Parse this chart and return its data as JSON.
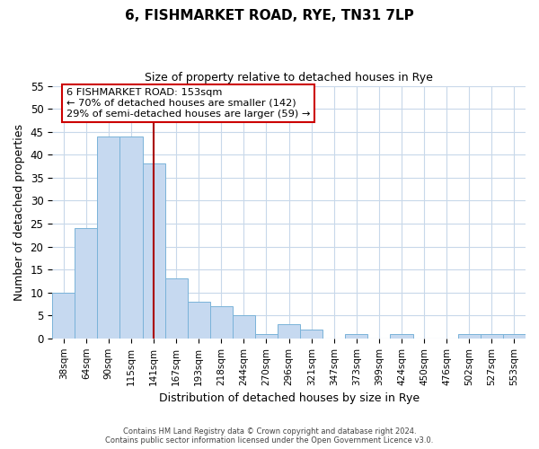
{
  "title": "6, FISHMARKET ROAD, RYE, TN31 7LP",
  "subtitle": "Size of property relative to detached houses in Rye",
  "xlabel": "Distribution of detached houses by size in Rye",
  "ylabel": "Number of detached properties",
  "bin_labels": [
    "38sqm",
    "64sqm",
    "90sqm",
    "115sqm",
    "141sqm",
    "167sqm",
    "193sqm",
    "218sqm",
    "244sqm",
    "270sqm",
    "296sqm",
    "321sqm",
    "347sqm",
    "373sqm",
    "399sqm",
    "424sqm",
    "450sqm",
    "476sqm",
    "502sqm",
    "527sqm",
    "553sqm"
  ],
  "bar_heights": [
    10,
    24,
    44,
    44,
    38,
    13,
    8,
    7,
    5,
    1,
    3,
    2,
    0,
    1,
    0,
    1,
    0,
    0,
    1,
    1,
    1
  ],
  "bar_color": "#c6d9f0",
  "bar_edge_color": "#7ab3d9",
  "vline_x_index": 4.5,
  "vline_color": "#aa0000",
  "ylim": [
    0,
    55
  ],
  "yticks": [
    0,
    5,
    10,
    15,
    20,
    25,
    30,
    35,
    40,
    45,
    50,
    55
  ],
  "annotation_title": "6 FISHMARKET ROAD: 153sqm",
  "annotation_line1": "← 70% of detached houses are smaller (142)",
  "annotation_line2": "29% of semi-detached houses are larger (59) →",
  "annotation_box_color": "#cc0000",
  "footer_line1": "Contains HM Land Registry data © Crown copyright and database right 2024.",
  "footer_line2": "Contains public sector information licensed under the Open Government Licence v3.0.",
  "background_color": "#ffffff",
  "grid_color": "#c8d8ea"
}
